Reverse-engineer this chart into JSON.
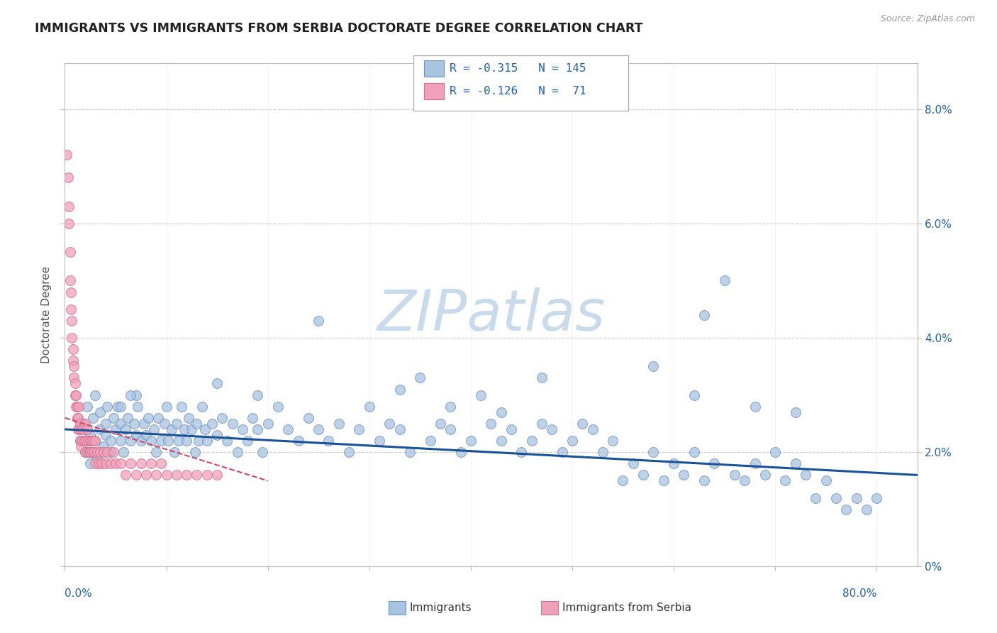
{
  "title": "IMMIGRANTS VS IMMIGRANTS FROM SERBIA DOCTORATE DEGREE CORRELATION CHART",
  "source_text": "Source: ZipAtlas.com",
  "ylabel": "Doctorate Degree",
  "ylim": [
    0.0,
    0.088
  ],
  "xlim": [
    0.0,
    0.84
  ],
  "blue_color": "#a8c4e0",
  "pink_color": "#f0a0b8",
  "blue_edge_color": "#7090c0",
  "pink_edge_color": "#d07090",
  "blue_line_color": "#1a5296",
  "pink_line_color": "#d04868",
  "text_color": "#2060b0",
  "ytick_vals": [
    0.0,
    0.02,
    0.04,
    0.06,
    0.08
  ],
  "ytick_labels": [
    "0%",
    "2.0%",
    "4.0%",
    "6.0%",
    "8.0%"
  ],
  "xtick_left_label": "0.0%",
  "xtick_right_label": "80.0%",
  "blue_trend_x0": 0.0,
  "blue_trend_x1": 0.84,
  "blue_trend_y0": 0.024,
  "blue_trend_y1": 0.016,
  "pink_trend_x0": 0.0,
  "pink_trend_x1": 0.2,
  "pink_trend_y0": 0.026,
  "pink_trend_y1": 0.015,
  "blue_scatter_x": [
    0.015,
    0.018,
    0.02,
    0.022,
    0.025,
    0.025,
    0.028,
    0.03,
    0.03,
    0.032,
    0.035,
    0.035,
    0.038,
    0.04,
    0.04,
    0.042,
    0.045,
    0.045,
    0.048,
    0.05,
    0.052,
    0.055,
    0.055,
    0.058,
    0.06,
    0.062,
    0.065,
    0.068,
    0.07,
    0.072,
    0.075,
    0.078,
    0.08,
    0.082,
    0.085,
    0.088,
    0.09,
    0.092,
    0.095,
    0.098,
    0.1,
    0.102,
    0.105,
    0.108,
    0.11,
    0.112,
    0.115,
    0.118,
    0.12,
    0.122,
    0.125,
    0.128,
    0.13,
    0.132,
    0.135,
    0.138,
    0.14,
    0.145,
    0.15,
    0.155,
    0.16,
    0.165,
    0.17,
    0.175,
    0.18,
    0.185,
    0.19,
    0.195,
    0.2,
    0.21,
    0.22,
    0.23,
    0.24,
    0.25,
    0.26,
    0.27,
    0.28,
    0.29,
    0.3,
    0.31,
    0.32,
    0.33,
    0.34,
    0.35,
    0.36,
    0.37,
    0.38,
    0.39,
    0.4,
    0.41,
    0.42,
    0.43,
    0.44,
    0.45,
    0.46,
    0.47,
    0.48,
    0.49,
    0.5,
    0.51,
    0.52,
    0.53,
    0.54,
    0.55,
    0.56,
    0.57,
    0.58,
    0.59,
    0.6,
    0.61,
    0.62,
    0.63,
    0.64,
    0.65,
    0.66,
    0.67,
    0.68,
    0.69,
    0.7,
    0.71,
    0.72,
    0.73,
    0.74,
    0.75,
    0.76,
    0.77,
    0.78,
    0.79,
    0.8,
    0.63,
    0.58,
    0.47,
    0.33,
    0.25,
    0.19,
    0.15,
    0.62,
    0.07,
    0.065,
    0.055,
    0.43,
    0.38,
    0.72,
    0.68
  ],
  "blue_scatter_y": [
    0.022,
    0.025,
    0.02,
    0.028,
    0.023,
    0.018,
    0.026,
    0.022,
    0.03,
    0.019,
    0.024,
    0.027,
    0.021,
    0.025,
    0.023,
    0.028,
    0.022,
    0.02,
    0.026,
    0.024,
    0.028,
    0.022,
    0.025,
    0.02,
    0.024,
    0.026,
    0.022,
    0.025,
    0.023,
    0.028,
    0.022,
    0.025,
    0.023,
    0.026,
    0.022,
    0.024,
    0.02,
    0.026,
    0.022,
    0.025,
    0.028,
    0.022,
    0.024,
    0.02,
    0.025,
    0.022,
    0.028,
    0.024,
    0.022,
    0.026,
    0.024,
    0.02,
    0.025,
    0.022,
    0.028,
    0.024,
    0.022,
    0.025,
    0.023,
    0.026,
    0.022,
    0.025,
    0.02,
    0.024,
    0.022,
    0.026,
    0.024,
    0.02,
    0.025,
    0.028,
    0.024,
    0.022,
    0.026,
    0.024,
    0.022,
    0.025,
    0.02,
    0.024,
    0.028,
    0.022,
    0.025,
    0.024,
    0.02,
    0.033,
    0.022,
    0.025,
    0.024,
    0.02,
    0.022,
    0.03,
    0.025,
    0.022,
    0.024,
    0.02,
    0.022,
    0.025,
    0.024,
    0.02,
    0.022,
    0.025,
    0.024,
    0.02,
    0.022,
    0.015,
    0.018,
    0.016,
    0.02,
    0.015,
    0.018,
    0.016,
    0.02,
    0.015,
    0.018,
    0.05,
    0.016,
    0.015,
    0.018,
    0.016,
    0.02,
    0.015,
    0.018,
    0.016,
    0.012,
    0.015,
    0.012,
    0.01,
    0.012,
    0.01,
    0.012,
    0.044,
    0.035,
    0.033,
    0.031,
    0.043,
    0.03,
    0.032,
    0.03,
    0.03,
    0.03,
    0.028,
    0.027,
    0.028,
    0.027,
    0.028
  ],
  "pink_scatter_x": [
    0.002,
    0.003,
    0.004,
    0.004,
    0.005,
    0.005,
    0.006,
    0.006,
    0.007,
    0.007,
    0.008,
    0.008,
    0.009,
    0.009,
    0.01,
    0.01,
    0.011,
    0.011,
    0.012,
    0.012,
    0.013,
    0.013,
    0.014,
    0.014,
    0.015,
    0.015,
    0.016,
    0.016,
    0.017,
    0.018,
    0.019,
    0.02,
    0.02,
    0.021,
    0.022,
    0.022,
    0.023,
    0.024,
    0.025,
    0.025,
    0.026,
    0.027,
    0.028,
    0.029,
    0.03,
    0.03,
    0.032,
    0.033,
    0.035,
    0.036,
    0.038,
    0.04,
    0.042,
    0.045,
    0.048,
    0.05,
    0.055,
    0.06,
    0.065,
    0.07,
    0.075,
    0.08,
    0.085,
    0.09,
    0.095,
    0.1,
    0.11,
    0.12,
    0.13,
    0.14,
    0.15
  ],
  "pink_scatter_y": [
    0.072,
    0.068,
    0.063,
    0.06,
    0.055,
    0.05,
    0.048,
    0.045,
    0.043,
    0.04,
    0.038,
    0.036,
    0.035,
    0.033,
    0.032,
    0.03,
    0.03,
    0.028,
    0.028,
    0.026,
    0.026,
    0.024,
    0.024,
    0.028,
    0.025,
    0.022,
    0.024,
    0.021,
    0.022,
    0.024,
    0.022,
    0.02,
    0.025,
    0.022,
    0.02,
    0.024,
    0.022,
    0.02,
    0.022,
    0.02,
    0.022,
    0.02,
    0.022,
    0.02,
    0.022,
    0.018,
    0.02,
    0.018,
    0.02,
    0.018,
    0.02,
    0.018,
    0.02,
    0.018,
    0.02,
    0.018,
    0.018,
    0.016,
    0.018,
    0.016,
    0.018,
    0.016,
    0.018,
    0.016,
    0.018,
    0.016,
    0.016,
    0.016,
    0.016,
    0.016,
    0.016
  ]
}
